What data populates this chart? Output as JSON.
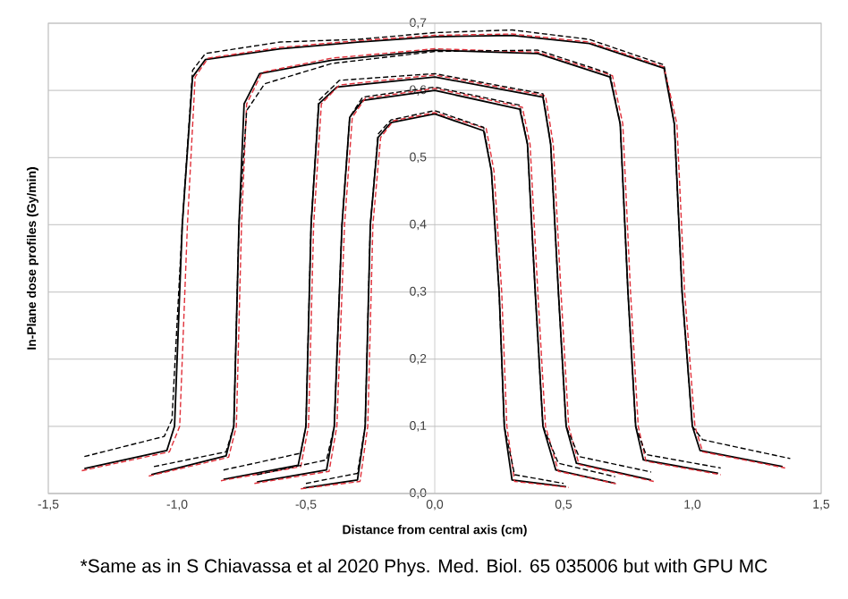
{
  "chart_data": {
    "type": "line",
    "xlabel": "Distance from central axis (cm)",
    "ylabel": "In-Plane dose profiles (Gy/min)",
    "annotations": [
      "*Same as in S Chiavassa et al 2020 Phys. Med. Biol. 65 035006 but with GPU MC"
    ],
    "xlim": [
      -1.5,
      1.5
    ],
    "ylim": [
      0,
      0.7
    ],
    "xticks": [
      {
        "value": -1.5,
        "label": "-1,5"
      },
      {
        "value": -1.0,
        "label": "-1,0"
      },
      {
        "value": -0.5,
        "label": "-0,5"
      },
      {
        "value": 0,
        "label": "0,0"
      },
      {
        "value": 0.5,
        "label": "0,5"
      },
      {
        "value": 1.0,
        "label": "1,0"
      },
      {
        "value": 1.5,
        "label": "1,5"
      }
    ],
    "yticks": [
      {
        "value": 0,
        "label": "0,0"
      },
      {
        "value": 0.1,
        "label": "0,1"
      },
      {
        "value": 0.2,
        "label": "0,2"
      },
      {
        "value": 0.3,
        "label": "0,3"
      },
      {
        "value": 0.4,
        "label": "0,4"
      },
      {
        "value": 0.5,
        "label": "0,5"
      },
      {
        "value": 0.6,
        "label": "0,6"
      },
      {
        "value": 0.7,
        "label": "0,7"
      }
    ],
    "grid": "y",
    "series": [
      {
        "color": "#000000",
        "line_style": "solid",
        "x": [
          -1.36,
          -1.04,
          -1.01,
          -0.98,
          -0.94,
          -0.89,
          -0.6,
          -0.3,
          0,
          0.3,
          0.6,
          0.89,
          0.93,
          0.96,
          1.0,
          1.03,
          1.35
        ],
        "values": [
          0.037,
          0.064,
          0.1,
          0.4,
          0.62,
          0.646,
          0.662,
          0.672,
          0.68,
          0.682,
          0.67,
          0.633,
          0.55,
          0.3,
          0.1,
          0.064,
          0.04
        ]
      },
      {
        "color": "#e0303a",
        "line_style": "dashed",
        "x": [
          -1.37,
          -1.03,
          -0.99,
          -0.96,
          -0.93,
          -0.88,
          -0.6,
          -0.3,
          0,
          0.3,
          0.6,
          0.89,
          0.94,
          0.97,
          1.01,
          1.04,
          1.36
        ],
        "values": [
          0.034,
          0.062,
          0.1,
          0.4,
          0.62,
          0.648,
          0.664,
          0.674,
          0.682,
          0.684,
          0.672,
          0.635,
          0.55,
          0.3,
          0.1,
          0.062,
          0.038
        ]
      },
      {
        "color": "#000000",
        "line_style": "dashed",
        "x": [
          -1.36,
          -1.05,
          -1.02,
          -0.98,
          -0.94,
          -0.89,
          -0.6,
          -0.3,
          0,
          0.3,
          0.6,
          0.89,
          0.93,
          0.96,
          1.0,
          1.04,
          1.38
        ],
        "values": [
          0.055,
          0.085,
          0.11,
          0.4,
          0.63,
          0.655,
          0.672,
          0.676,
          0.686,
          0.69,
          0.676,
          0.638,
          0.55,
          0.3,
          0.1,
          0.08,
          0.052
        ]
      },
      {
        "color": "#000000",
        "line_style": "solid",
        "x": [
          -1.1,
          -0.81,
          -0.78,
          -0.76,
          -0.74,
          -0.68,
          -0.4,
          0,
          0.4,
          0.68,
          0.72,
          0.75,
          0.78,
          0.81,
          1.1
        ],
        "values": [
          0.028,
          0.056,
          0.1,
          0.4,
          0.58,
          0.625,
          0.645,
          0.66,
          0.655,
          0.62,
          0.55,
          0.3,
          0.1,
          0.05,
          0.03
        ]
      },
      {
        "color": "#e0303a",
        "line_style": "dashed",
        "x": [
          -1.11,
          -0.8,
          -0.77,
          -0.75,
          -0.73,
          -0.67,
          -0.4,
          0,
          0.4,
          0.69,
          0.73,
          0.76,
          0.79,
          0.82,
          1.11
        ],
        "values": [
          0.026,
          0.054,
          0.1,
          0.4,
          0.58,
          0.627,
          0.648,
          0.662,
          0.657,
          0.622,
          0.55,
          0.3,
          0.1,
          0.048,
          0.028
        ]
      },
      {
        "color": "#000000",
        "line_style": "dashed",
        "x": [
          -1.09,
          -0.81,
          -0.78,
          -0.76,
          -0.73,
          -0.66,
          -0.4,
          0,
          0.4,
          0.68,
          0.72,
          0.75,
          0.78,
          0.82,
          1.11
        ],
        "values": [
          0.04,
          0.062,
          0.1,
          0.4,
          0.57,
          0.61,
          0.64,
          0.658,
          0.66,
          0.625,
          0.55,
          0.3,
          0.1,
          0.058,
          0.038
        ]
      },
      {
        "color": "#000000",
        "line_style": "solid",
        "x": [
          -0.82,
          -0.53,
          -0.5,
          -0.48,
          -0.45,
          -0.38,
          0,
          0.42,
          0.45,
          0.48,
          0.51,
          0.55,
          0.84
        ],
        "values": [
          0.021,
          0.042,
          0.1,
          0.4,
          0.58,
          0.605,
          0.62,
          0.59,
          0.52,
          0.3,
          0.1,
          0.045,
          0.02
        ]
      },
      {
        "color": "#e0303a",
        "line_style": "dashed",
        "x": [
          -0.83,
          -0.52,
          -0.49,
          -0.47,
          -0.44,
          -0.37,
          0,
          0.43,
          0.46,
          0.49,
          0.52,
          0.56,
          0.85
        ],
        "values": [
          0.019,
          0.04,
          0.1,
          0.4,
          0.58,
          0.608,
          0.623,
          0.592,
          0.52,
          0.3,
          0.1,
          0.043,
          0.018
        ]
      },
      {
        "color": "#000000",
        "line_style": "dashed",
        "x": [
          -0.82,
          -0.52,
          -0.5,
          -0.48,
          -0.45,
          -0.37,
          0,
          0.42,
          0.45,
          0.48,
          0.51,
          0.56,
          0.84
        ],
        "values": [
          0.035,
          0.06,
          0.1,
          0.4,
          0.585,
          0.615,
          0.625,
          0.595,
          0.52,
          0.3,
          0.1,
          0.055,
          0.032
        ]
      },
      {
        "color": "#000000",
        "line_style": "solid",
        "x": [
          -0.69,
          -0.42,
          -0.39,
          -0.36,
          -0.33,
          -0.28,
          0,
          0.33,
          0.36,
          0.39,
          0.42,
          0.47,
          0.7
        ],
        "values": [
          0.017,
          0.035,
          0.1,
          0.4,
          0.56,
          0.585,
          0.6,
          0.572,
          0.52,
          0.3,
          0.1,
          0.035,
          0.015
        ]
      },
      {
        "color": "#e0303a",
        "line_style": "dashed",
        "x": [
          -0.7,
          -0.41,
          -0.38,
          -0.35,
          -0.32,
          -0.27,
          0,
          0.34,
          0.37,
          0.4,
          0.43,
          0.48,
          0.71
        ],
        "values": [
          0.015,
          0.033,
          0.1,
          0.4,
          0.56,
          0.588,
          0.603,
          0.575,
          0.52,
          0.3,
          0.1,
          0.033,
          0.014
        ]
      },
      {
        "color": "#000000",
        "line_style": "dashed",
        "x": [
          -0.69,
          -0.42,
          -0.39,
          -0.36,
          -0.33,
          -0.28,
          0,
          0.33,
          0.36,
          0.39,
          0.42,
          0.48,
          0.7
        ],
        "values": [
          0.028,
          0.05,
          0.1,
          0.4,
          0.56,
          0.59,
          0.605,
          0.578,
          0.52,
          0.3,
          0.1,
          0.045,
          0.025
        ]
      },
      {
        "color": "#000000",
        "line_style": "solid",
        "x": [
          -0.51,
          -0.3,
          -0.27,
          -0.25,
          -0.22,
          -0.17,
          0,
          0.19,
          0.22,
          0.25,
          0.27,
          0.3,
          0.51
        ],
        "values": [
          0.008,
          0.02,
          0.1,
          0.4,
          0.53,
          0.552,
          0.565,
          0.54,
          0.48,
          0.3,
          0.1,
          0.02,
          0.01
        ]
      },
      {
        "color": "#e0303a",
        "line_style": "dashed",
        "x": [
          -0.52,
          -0.29,
          -0.26,
          -0.24,
          -0.21,
          -0.16,
          0,
          0.2,
          0.23,
          0.26,
          0.28,
          0.31,
          0.52
        ],
        "values": [
          0.007,
          0.018,
          0.1,
          0.4,
          0.53,
          0.555,
          0.567,
          0.543,
          0.48,
          0.3,
          0.1,
          0.018,
          0.009
        ]
      },
      {
        "color": "#000000",
        "line_style": "dashed",
        "x": [
          -0.5,
          -0.3,
          -0.27,
          -0.25,
          -0.22,
          -0.17,
          0,
          0.19,
          0.22,
          0.25,
          0.27,
          0.31,
          0.5
        ],
        "values": [
          0.015,
          0.03,
          0.1,
          0.4,
          0.535,
          0.556,
          0.57,
          0.545,
          0.48,
          0.3,
          0.1,
          0.028,
          0.015
        ]
      }
    ]
  }
}
